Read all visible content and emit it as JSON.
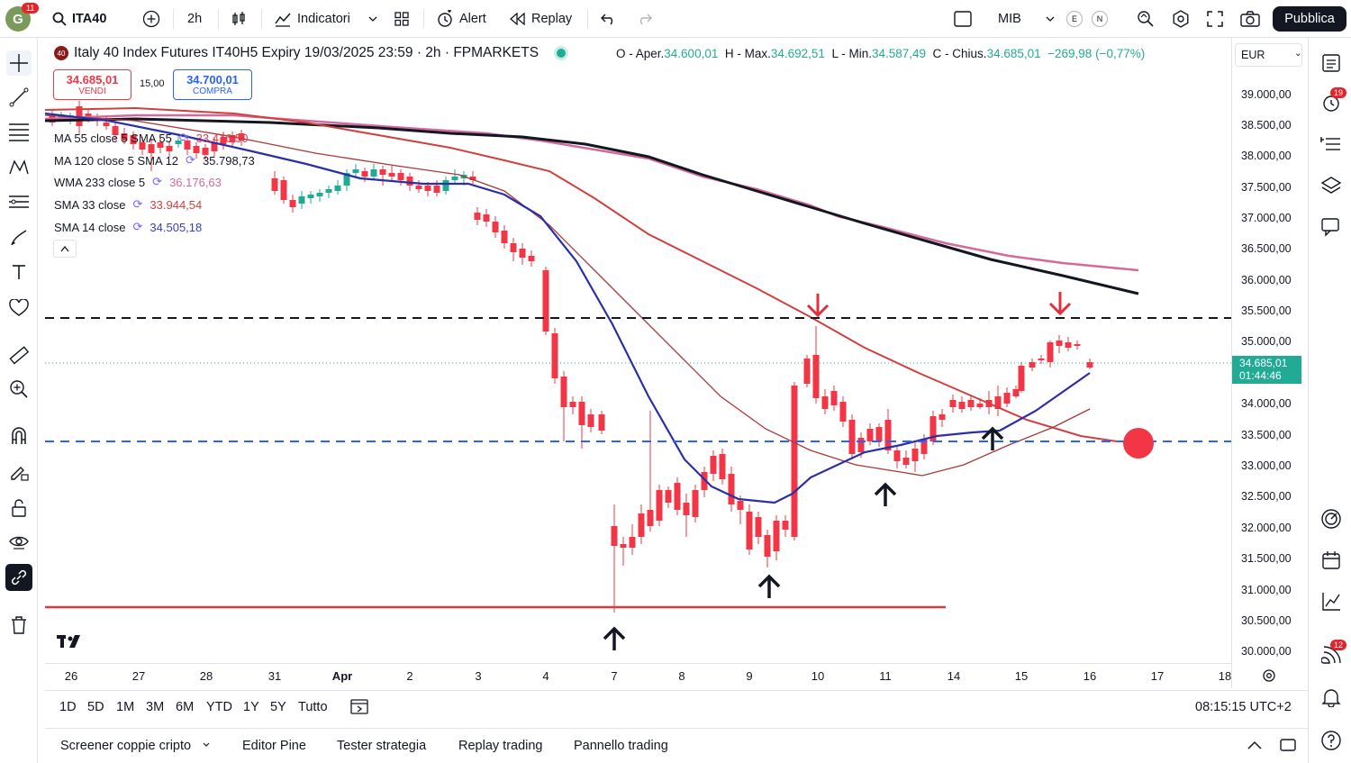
{
  "topbar": {
    "avatar_letter": "G",
    "avatar_badge": "11",
    "symbol": "ITA40",
    "interval": "2h",
    "indicators": "Indicatori",
    "alert": "Alert",
    "replay": "Replay",
    "layout_name": "MIB",
    "layout_e": "E",
    "layout_n": "N",
    "publish": "Pubblica"
  },
  "legend": {
    "title": "Italy 40 Index Futures IT40H5 Expiry 19/03/2025 23:59 · 2h · FPMARKETS",
    "o_label": "O - Aper.",
    "o_val": "34.600,01",
    "h_label": "H - Max.",
    "h_val": "34.692,51",
    "l_label": "L - Min.",
    "l_val": "34.587,49",
    "c_label": "C - Chius.",
    "c_val": "34.685,01",
    "change": "−269,98 (−0,77%)"
  },
  "trade": {
    "sell_price": "34.685,01",
    "sell_label": "VENDI",
    "spread": "15,00",
    "buy_price": "34.700,01",
    "buy_label": "COMPRA"
  },
  "indicators": [
    {
      "name": "MA 55 close 5 SMA 55",
      "value": "33.416,50",
      "color": "#e04050"
    },
    {
      "name": "MA 120 close 5 SMA 12",
      "value": "35.798,73",
      "color": "#131722"
    },
    {
      "name": "WMA 233 close 5",
      "value": "36.176,63",
      "color": "#d46a9a"
    },
    {
      "name": "SMA 33 close",
      "value": "33.944,54",
      "color": "#d23f3f"
    },
    {
      "name": "SMA 14 close",
      "value": "34.505,18",
      "color": "#3a3fb8"
    }
  ],
  "currency": "EUR",
  "yaxis": [
    "39.000,00",
    "38.500,00",
    "38.000,00",
    "37.500,00",
    "37.000,00",
    "36.500,00",
    "36.000,00",
    "35.500,00",
    "35.000,00",
    "34.000,00",
    "33.500,00",
    "33.000,00",
    "32.500,00",
    "32.000,00",
    "31.500,00",
    "31.000,00",
    "30.500,00",
    "30.000,00"
  ],
  "price_tag": {
    "price": "34.685,01",
    "countdown": "01:44:46"
  },
  "xaxis": [
    "26",
    "27",
    "28",
    "31",
    "Apr",
    "2",
    "3",
    "4",
    "7",
    "8",
    "9",
    "10",
    "11",
    "14",
    "15",
    "16",
    "17",
    "18"
  ],
  "ranges": [
    "1D",
    "5D",
    "1M",
    "3M",
    "6M",
    "YTD",
    "1Y",
    "5Y",
    "Tutto"
  ],
  "clock": "08:15:15 UTC+2",
  "panel_tabs": [
    "Screener coppie cripto",
    "Editor Pine",
    "Tester strategia",
    "Replay trading",
    "Pannello trading"
  ],
  "right_badges": {
    "alerts": "19",
    "notifications": "12"
  },
  "colors": {
    "up": "#22ab94",
    "down": "#f23645",
    "accent": "#2962ff"
  }
}
